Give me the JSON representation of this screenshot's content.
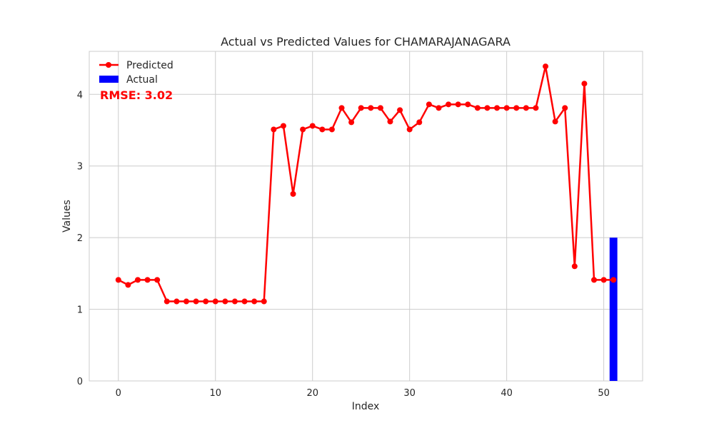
{
  "chart_data": {
    "type": "line",
    "title": "Actual vs Predicted Values for CHAMARAJANAGARA",
    "xlabel": "Index",
    "ylabel": "Values",
    "xlim": [
      -3,
      54
    ],
    "ylim": [
      0,
      4.6
    ],
    "xticks": [
      0,
      10,
      20,
      30,
      40,
      50
    ],
    "yticks": [
      0,
      1,
      2,
      3,
      4
    ],
    "grid": true,
    "legend_position": "top-left",
    "annotation": "RMSE: 3.02",
    "annotation_color": "#ff0000",
    "series": [
      {
        "name": "Predicted",
        "kind": "line",
        "color": "#ff0000",
        "x": [
          0,
          1,
          2,
          3,
          4,
          5,
          6,
          7,
          8,
          9,
          10,
          11,
          12,
          13,
          14,
          15,
          16,
          17,
          18,
          19,
          20,
          21,
          22,
          23,
          24,
          25,
          26,
          27,
          28,
          29,
          30,
          31,
          32,
          33,
          34,
          35,
          36,
          37,
          38,
          39,
          40,
          41,
          42,
          43,
          44,
          45,
          46,
          47,
          48,
          49,
          50,
          51
        ],
        "y": [
          1.41,
          1.34,
          1.41,
          1.41,
          1.41,
          1.11,
          1.11,
          1.11,
          1.11,
          1.11,
          1.11,
          1.11,
          1.11,
          1.11,
          1.11,
          1.11,
          3.51,
          3.56,
          2.61,
          3.51,
          3.56,
          3.51,
          3.51,
          3.81,
          3.61,
          3.81,
          3.81,
          3.81,
          3.62,
          3.78,
          3.51,
          3.61,
          3.86,
          3.81,
          3.86,
          3.86,
          3.86,
          3.81,
          3.81,
          3.81,
          3.81,
          3.81,
          3.81,
          3.81,
          4.39,
          3.62,
          3.81,
          1.6,
          4.15,
          1.41,
          1.41,
          1.41
        ]
      },
      {
        "name": "Actual",
        "kind": "bar",
        "color": "#0000ff",
        "x": [
          51
        ],
        "y": [
          2.0
        ]
      }
    ]
  }
}
